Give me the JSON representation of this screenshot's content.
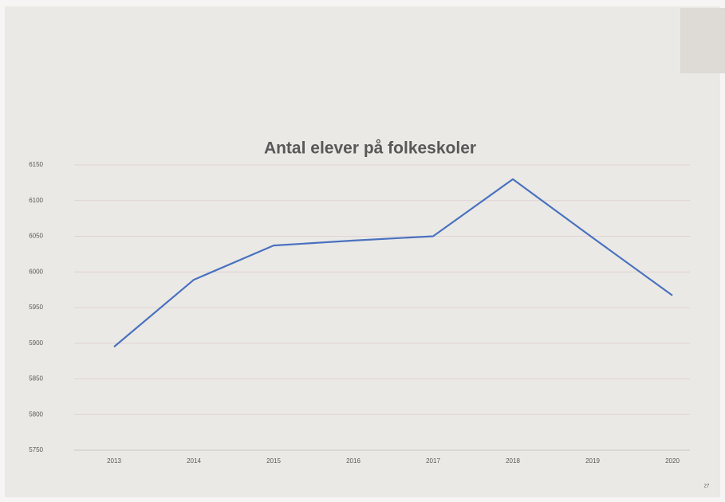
{
  "page_number": "27",
  "chart_data": {
    "type": "line",
    "title": "Antal elever på folkeskoler",
    "categories": [
      "2013",
      "2014",
      "2015",
      "2016",
      "2017",
      "2018",
      "2019",
      "2020"
    ],
    "series": [
      {
        "name": "Antal elever",
        "color": "#4a72c0",
        "values": [
          5895,
          5989,
          6037,
          6044,
          6050,
          6130,
          6048,
          5967
        ]
      }
    ],
    "ylim": [
      5750,
      6150
    ],
    "yticks": [
      5750,
      5800,
      5850,
      5900,
      5950,
      6000,
      6050,
      6100,
      6150
    ],
    "grid": true
  }
}
